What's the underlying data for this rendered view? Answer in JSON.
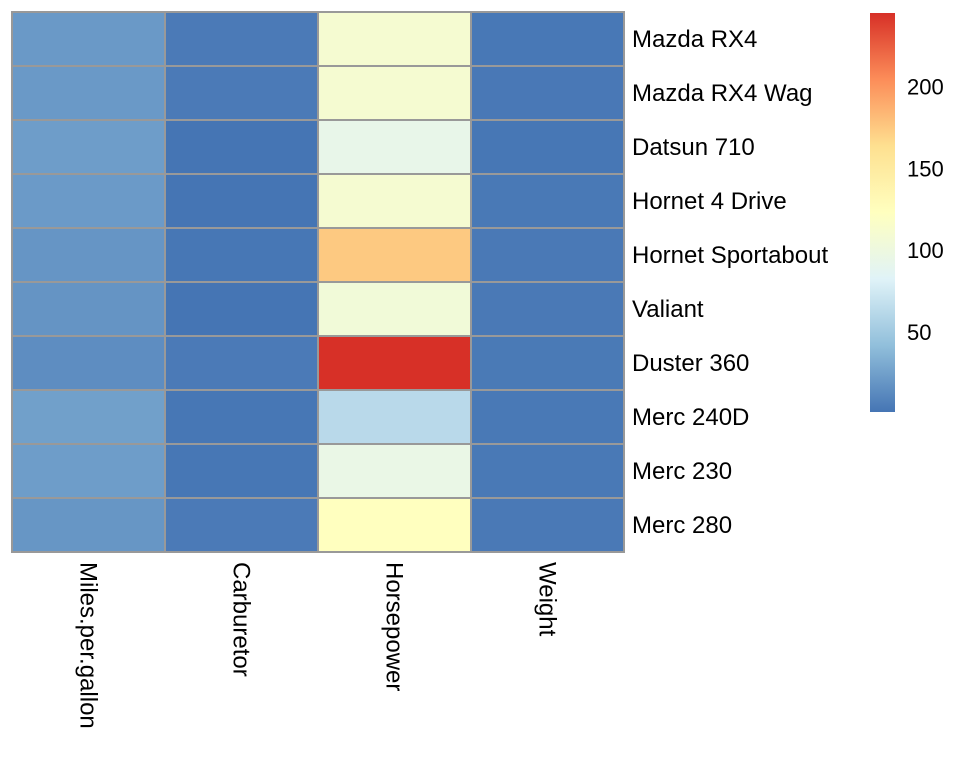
{
  "chart_data": {
    "type": "heatmap",
    "title": "",
    "rows": [
      "Mazda RX4",
      "Mazda RX4 Wag",
      "Datsun 710",
      "Hornet 4 Drive",
      "Hornet Sportabout",
      "Valiant",
      "Duster 360",
      "Merc 240D",
      "Merc 230",
      "Merc 280"
    ],
    "columns": [
      "Miles.per.gallon",
      "Carburetor",
      "Horsepower",
      "Weight"
    ],
    "values": [
      [
        21.0,
        4,
        110,
        2.62
      ],
      [
        21.0,
        4,
        110,
        2.875
      ],
      [
        22.8,
        1,
        93,
        2.32
      ],
      [
        21.4,
        1,
        110,
        3.215
      ],
      [
        18.7,
        2,
        175,
        3.44
      ],
      [
        18.1,
        1,
        105,
        3.46
      ],
      [
        14.3,
        4,
        245,
        3.57
      ],
      [
        24.4,
        2,
        62,
        3.19
      ],
      [
        22.8,
        2,
        95,
        3.15
      ],
      [
        19.2,
        4,
        123,
        3.44
      ]
    ],
    "color_scale": {
      "min": 1,
      "max": 245,
      "colors": [
        "#4575B4",
        "#91BFDB",
        "#E0F3F8",
        "#FFFFBF",
        "#FEE090",
        "#FC8D59",
        "#D73027"
      ]
    },
    "legend": {
      "position": "right",
      "ticks": [
        50,
        100,
        150,
        200
      ],
      "tick_labels": [
        "50",
        "100",
        "150",
        "200"
      ]
    },
    "cell_border_color": "#999999"
  }
}
